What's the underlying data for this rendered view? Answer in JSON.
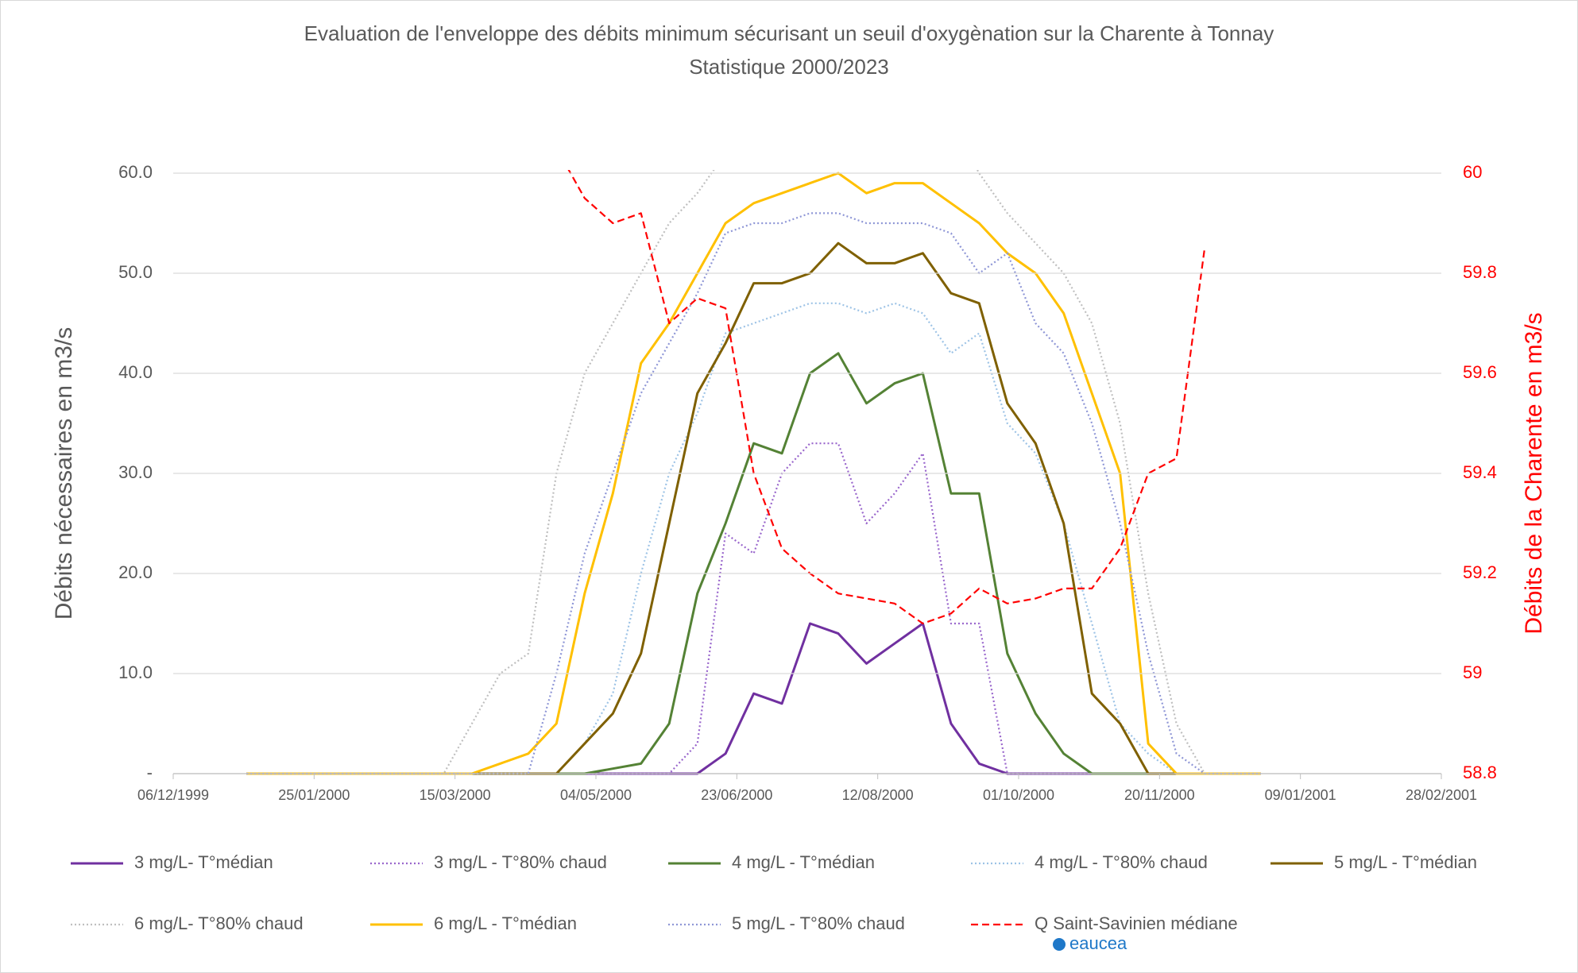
{
  "chart_data": {
    "type": "line",
    "title": "Evaluation de l'enveloppe des débits minimum sécurisant un seuil d'oxygènation sur la Charente à Tonnay",
    "subtitle": "Statistique 2000/2023",
    "y_label": "Débits nécessaires en m3/s",
    "y2_label": "Débits de la Charente  en m3/s",
    "annotation": "eaucea",
    "grid": true,
    "legend": "bottom",
    "xlim": [
      "06/12/1999",
      "28/02/2001"
    ],
    "xticks": [
      "06/12/1999",
      "25/01/2000",
      "15/03/2000",
      "04/05/2000",
      "23/06/2000",
      "12/08/2000",
      "01/10/2000",
      "20/11/2000",
      "09/01/2001",
      "28/02/2001"
    ],
    "ylim": [
      0,
      60
    ],
    "yticks": [
      {
        "value": 0,
        "label": "-"
      },
      {
        "value": 10,
        "label": "10.0"
      },
      {
        "value": 20,
        "label": "20.0"
      },
      {
        "value": 30,
        "label": "30.0"
      },
      {
        "value": 40,
        "label": "40.0"
      },
      {
        "value": 50,
        "label": "50.0"
      },
      {
        "value": 60,
        "label": "60.0"
      }
    ],
    "y2lim": [
      58.8,
      60
    ],
    "y2ticks": [
      58.8,
      59,
      59.2,
      59.4,
      59.6,
      59.8,
      60
    ],
    "x": [
      "01/01/2000",
      "11/01/2000",
      "21/01/2000",
      "31/01/2000",
      "10/02/2000",
      "20/02/2000",
      "01/03/2000",
      "11/03/2000",
      "21/03/2000",
      "31/03/2000",
      "10/04/2000",
      "20/04/2000",
      "30/04/2000",
      "10/05/2000",
      "20/05/2000",
      "30/05/2000",
      "09/06/2000",
      "19/06/2000",
      "29/06/2000",
      "09/07/2000",
      "19/07/2000",
      "29/07/2000",
      "08/08/2000",
      "18/08/2000",
      "28/08/2000",
      "07/09/2000",
      "17/09/2000",
      "27/09/2000",
      "07/10/2000",
      "17/10/2000",
      "27/10/2000",
      "06/11/2000",
      "16/11/2000",
      "26/11/2000",
      "06/12/2000",
      "16/12/2000",
      "26/12/2000"
    ],
    "series": [
      {
        "name": "3 mg/L- T°médian",
        "color": "#7030a0",
        "dash": "solid",
        "values": [
          0,
          0,
          0,
          0,
          0,
          0,
          0,
          0,
          0,
          0,
          0,
          0,
          0,
          0,
          0,
          0,
          0,
          2,
          8,
          7,
          15,
          14,
          11,
          13,
          15,
          5,
          1,
          0,
          0,
          0,
          0,
          0,
          0,
          0,
          0,
          0,
          0
        ]
      },
      {
        "name": "3 mg/L - T°80% chaud",
        "color": "#9966cc",
        "dash": "dotted",
        "values": [
          0,
          0,
          0,
          0,
          0,
          0,
          0,
          0,
          0,
          0,
          0,
          0,
          0,
          0,
          0,
          0,
          3,
          24,
          22,
          30,
          33,
          33,
          25,
          28,
          32,
          15,
          15,
          0,
          0,
          0,
          0,
          0,
          0,
          0,
          0,
          0,
          0
        ]
      },
      {
        "name": "4 mg/L - T°médian",
        "color": "#548235",
        "dash": "solid",
        "values": [
          0,
          0,
          0,
          0,
          0,
          0,
          0,
          0,
          0,
          0,
          0,
          0,
          0,
          0.5,
          1,
          5,
          18,
          25,
          33,
          32,
          40,
          42,
          37,
          39,
          40,
          28,
          28,
          12,
          6,
          2,
          0,
          0,
          0,
          0,
          0,
          0,
          0
        ]
      },
      {
        "name": "4 mg/L - T°80% chaud",
        "color": "#9dc3e6",
        "dash": "dotted",
        "values": [
          0,
          0,
          0,
          0,
          0,
          0,
          0,
          0,
          0,
          0,
          0,
          0,
          3,
          8,
          20,
          30,
          36,
          44,
          45,
          46,
          47,
          47,
          46,
          47,
          46,
          42,
          44,
          35,
          32,
          25,
          15,
          5,
          2,
          0,
          0,
          0,
          0
        ]
      },
      {
        "name": "5 mg/L - T°médian",
        "color": "#7f6000",
        "dash": "solid",
        "values": [
          0,
          0,
          0,
          0,
          0,
          0,
          0,
          0,
          0,
          0,
          0,
          0,
          3,
          6,
          12,
          25,
          38,
          43,
          49,
          49,
          50,
          53,
          51,
          51,
          52,
          48,
          47,
          37,
          33,
          25,
          8,
          5,
          0,
          0,
          0,
          0,
          0
        ]
      },
      {
        "name": "6 mg/L- T°80% chaud",
        "color": "#bfbfbf",
        "dash": "dotted",
        "values": [
          0,
          0,
          0,
          0,
          0,
          0,
          0,
          0,
          5,
          10,
          12,
          30,
          40,
          45,
          50,
          55,
          58,
          62,
          65,
          65,
          65,
          65,
          65,
          65,
          65,
          65,
          60,
          56,
          53,
          50,
          45,
          35,
          18,
          5,
          0,
          0,
          0
        ]
      },
      {
        "name": "6 mg/L - T°médian",
        "color": "#ffc000",
        "dash": "solid",
        "values": [
          0,
          0,
          0,
          0,
          0,
          0,
          0,
          0,
          0,
          1,
          2,
          5,
          18,
          28,
          41,
          45,
          50,
          55,
          57,
          58,
          59,
          60,
          58,
          59,
          59,
          57,
          55,
          52,
          50,
          46,
          38,
          30,
          3,
          0,
          0,
          0,
          0
        ]
      },
      {
        "name": "5 mg/L - T°80% chaud",
        "color": "#8e96d6",
        "dash": "dotted",
        "values": [
          0,
          0,
          0,
          0,
          0,
          0,
          0,
          0,
          0,
          0,
          0,
          10,
          22,
          30,
          38,
          43,
          48,
          54,
          55,
          55,
          56,
          56,
          55,
          55,
          55,
          54,
          50,
          52,
          45,
          42,
          35,
          25,
          12,
          2,
          0,
          0,
          0
        ]
      },
      {
        "name": "Q Saint-Savinien médiane",
        "color": "#ff0000",
        "dash": "dashed",
        "axis": "y2",
        "values": [
          null,
          null,
          null,
          null,
          null,
          null,
          null,
          null,
          null,
          null,
          null,
          60.05,
          59.95,
          59.9,
          59.92,
          59.7,
          59.75,
          59.73,
          59.4,
          59.25,
          59.2,
          59.16,
          59.15,
          59.14,
          59.1,
          59.12,
          59.17,
          59.14,
          59.15,
          59.17,
          59.17,
          59.25,
          59.4,
          59.43,
          59.85,
          null,
          null
        ]
      }
    ]
  }
}
